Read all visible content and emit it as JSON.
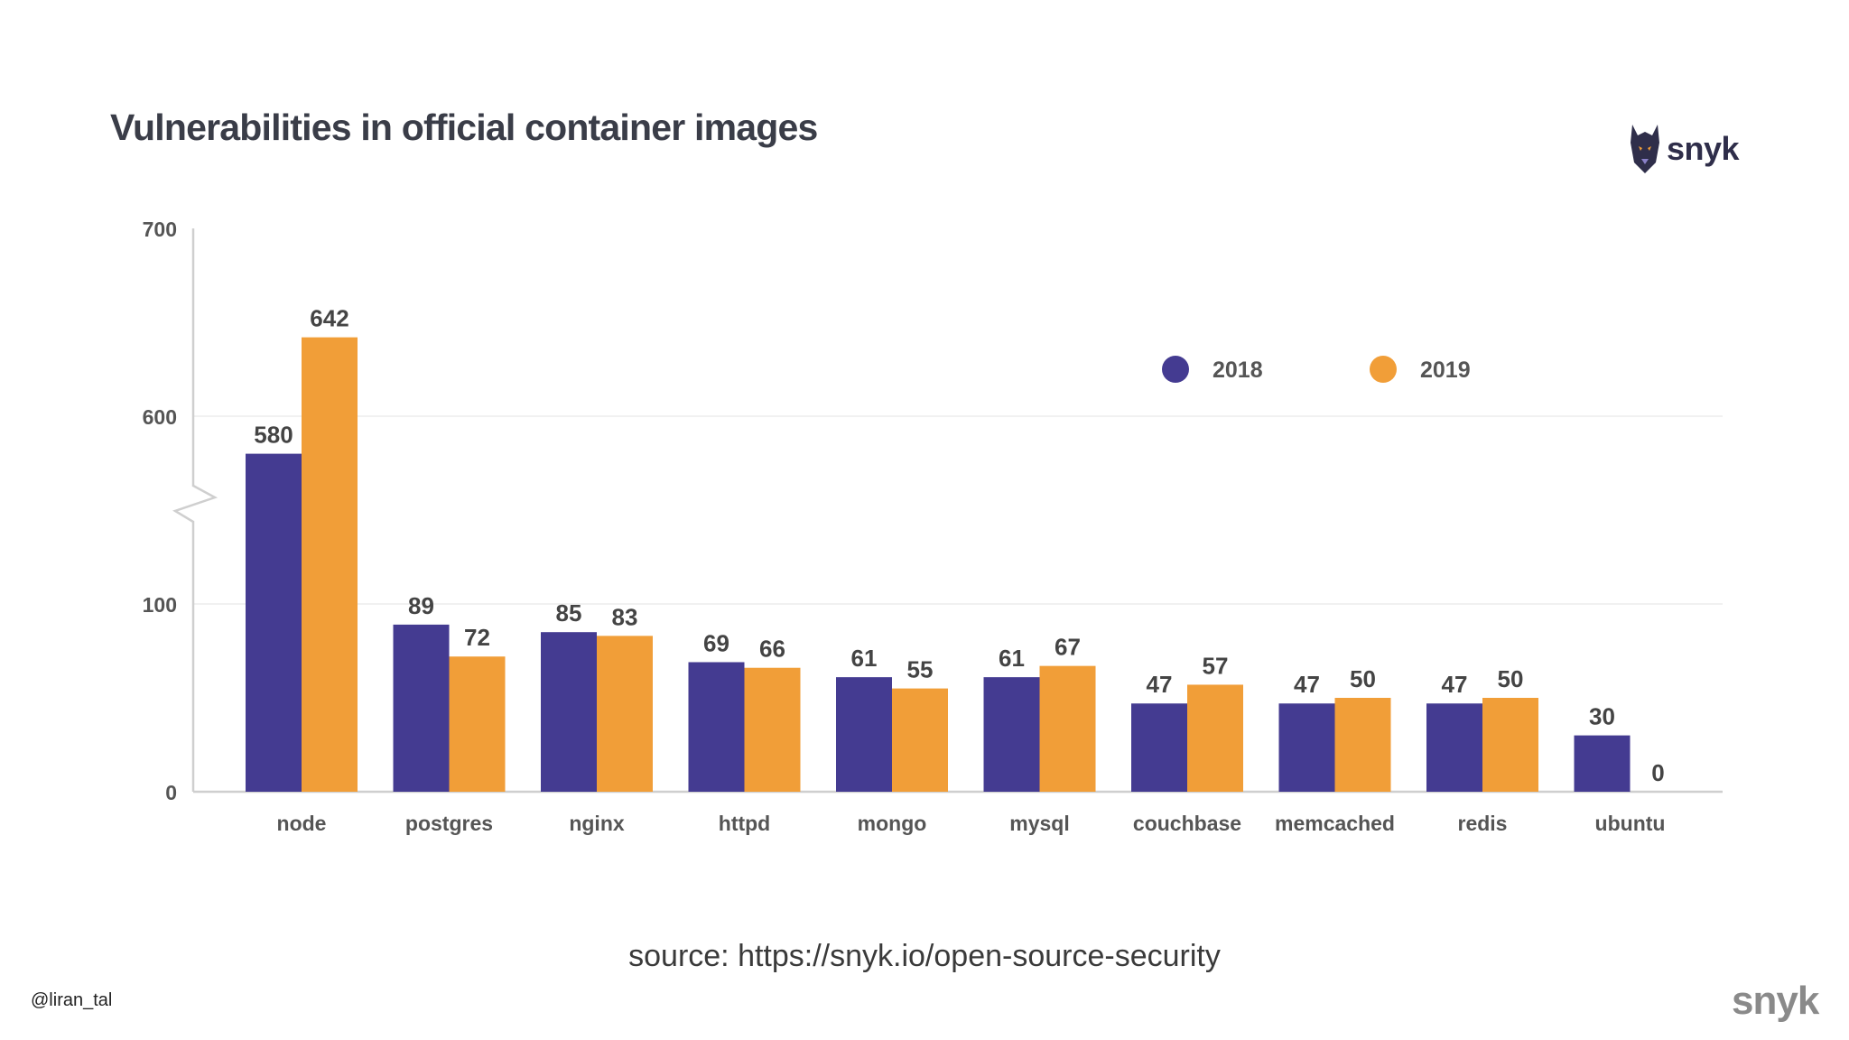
{
  "slide": {
    "source_text": "source: https://snyk.io/open-source-security",
    "handle": "@liran_tal",
    "footer_logo_text": "snyk"
  },
  "brand": {
    "logo_text": "snyk",
    "logo_icon": "doberman-dog-icon"
  },
  "colors": {
    "series_2018": "#443b91",
    "series_2019": "#f19e38",
    "title": "#3a3d48",
    "axis": "#cfcfcf",
    "label": "#555555"
  },
  "chart_data": {
    "type": "bar",
    "title": "Vulnerabilities in official container images",
    "xlabel": "",
    "ylabel": "",
    "categories": [
      "node",
      "postgres",
      "nginx",
      "httpd",
      "mongo",
      "mysql",
      "couchbase",
      "memcached",
      "redis",
      "ubuntu"
    ],
    "series": [
      {
        "name": "2018",
        "values": [
          580,
          89,
          85,
          69,
          61,
          61,
          47,
          47,
          47,
          30
        ]
      },
      {
        "name": "2019",
        "values": [
          642,
          72,
          83,
          66,
          55,
          67,
          57,
          50,
          50,
          0
        ]
      }
    ],
    "yticks": [
      "0",
      "100",
      "600",
      "700"
    ],
    "axis_break": {
      "from": 100,
      "to": 600
    },
    "ylim": [
      0,
      700
    ],
    "grid": false,
    "legend_position": "top-right"
  }
}
